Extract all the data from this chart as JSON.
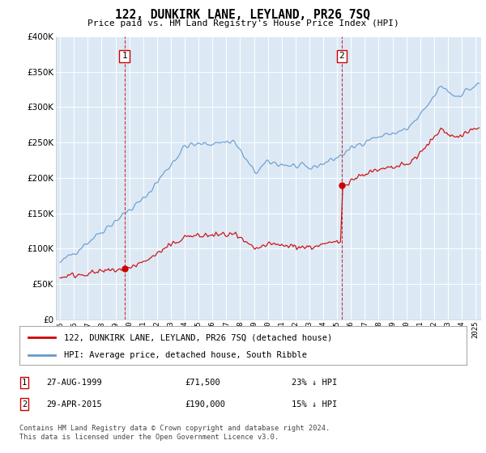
{
  "title": "122, DUNKIRK LANE, LEYLAND, PR26 7SQ",
  "subtitle": "Price paid vs. HM Land Registry's House Price Index (HPI)",
  "legend_line1": "122, DUNKIRK LANE, LEYLAND, PR26 7SQ (detached house)",
  "legend_line2": "HPI: Average price, detached house, South Ribble",
  "annotation1_date": "27-AUG-1999",
  "annotation1_price": "£71,500",
  "annotation1_hpi": "23% ↓ HPI",
  "annotation2_date": "29-APR-2015",
  "annotation2_price": "£190,000",
  "annotation2_hpi": "15% ↓ HPI",
  "footer": "Contains HM Land Registry data © Crown copyright and database right 2024.\nThis data is licensed under the Open Government Licence v3.0.",
  "sale1_year": 1999.65,
  "sale1_price": 71500,
  "sale2_year": 2015.33,
  "sale2_price": 190000,
  "hpi_color": "#6699cc",
  "price_color": "#cc0000",
  "background_color": "#ffffff",
  "plot_bg_color": "#dce9f5",
  "grid_color": "#ffffff",
  "ylim": [
    0,
    400000
  ],
  "xlim": [
    1994.7,
    2025.4
  ]
}
